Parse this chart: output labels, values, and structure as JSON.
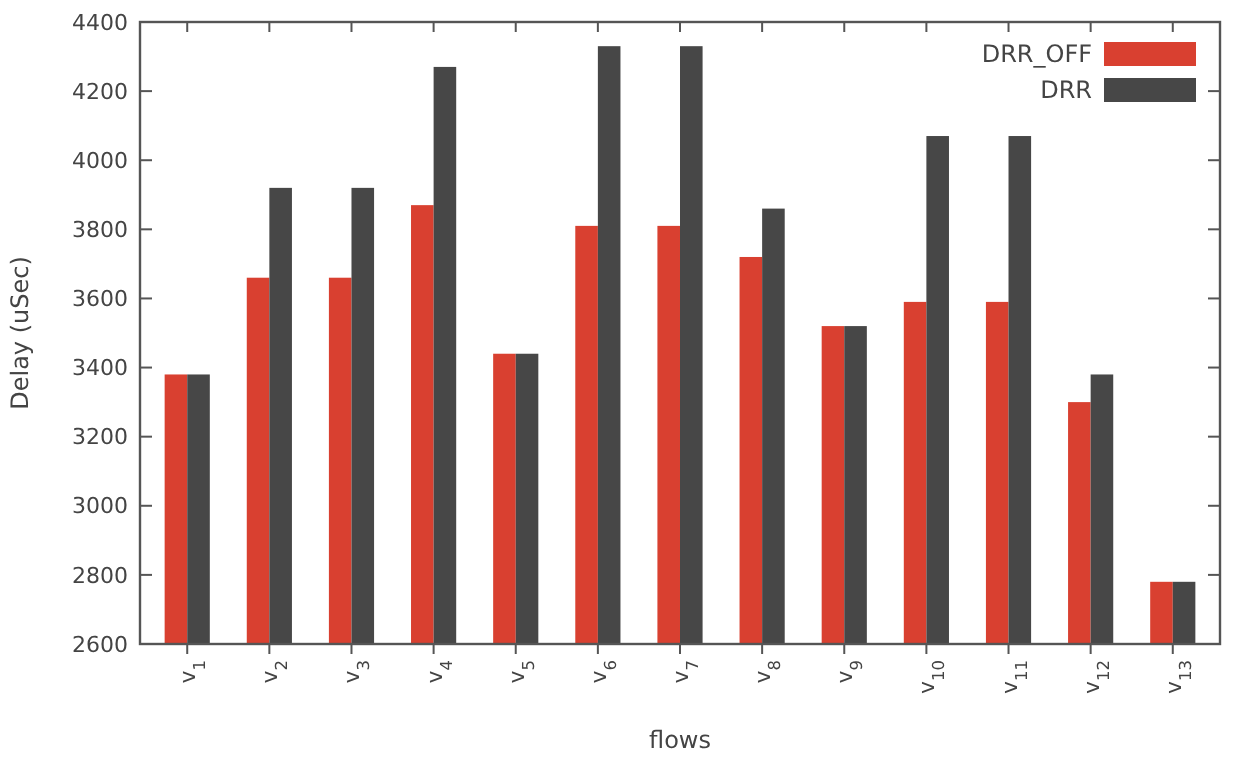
{
  "chart_data": {
    "type": "bar",
    "xlabel": "flows",
    "ylabel": "Delay (uSec)",
    "categories": [
      "v$_{1}$",
      "v$_{2}$",
      "v$_{3}$",
      "v$_{4}$",
      "v$_{5}$",
      "v$_{6}$",
      "v$_{7}$",
      "v$_{8}$",
      "v$_{9}$",
      "v$_{10}$",
      "v$_{11}$",
      "v$_{12}$",
      "v$_{13}$"
    ],
    "series": [
      {
        "name": "DRR_OFF",
        "color": "#d94030",
        "values": [
          3380,
          3660,
          3660,
          3870,
          3440,
          3810,
          3810,
          3720,
          3520,
          3590,
          3590,
          3300,
          2780
        ]
      },
      {
        "name": "DRR",
        "color": "#474747",
        "values": [
          3380,
          3920,
          3920,
          4270,
          3440,
          4330,
          4330,
          3860,
          3520,
          4070,
          4070,
          3380,
          2780
        ]
      }
    ],
    "ylim": [
      2600,
      4400
    ],
    "yticks": [
      2600,
      2800,
      3000,
      3200,
      3400,
      3600,
      3800,
      4000,
      4200,
      4400
    ],
    "grid": false,
    "legend": "top right"
  }
}
